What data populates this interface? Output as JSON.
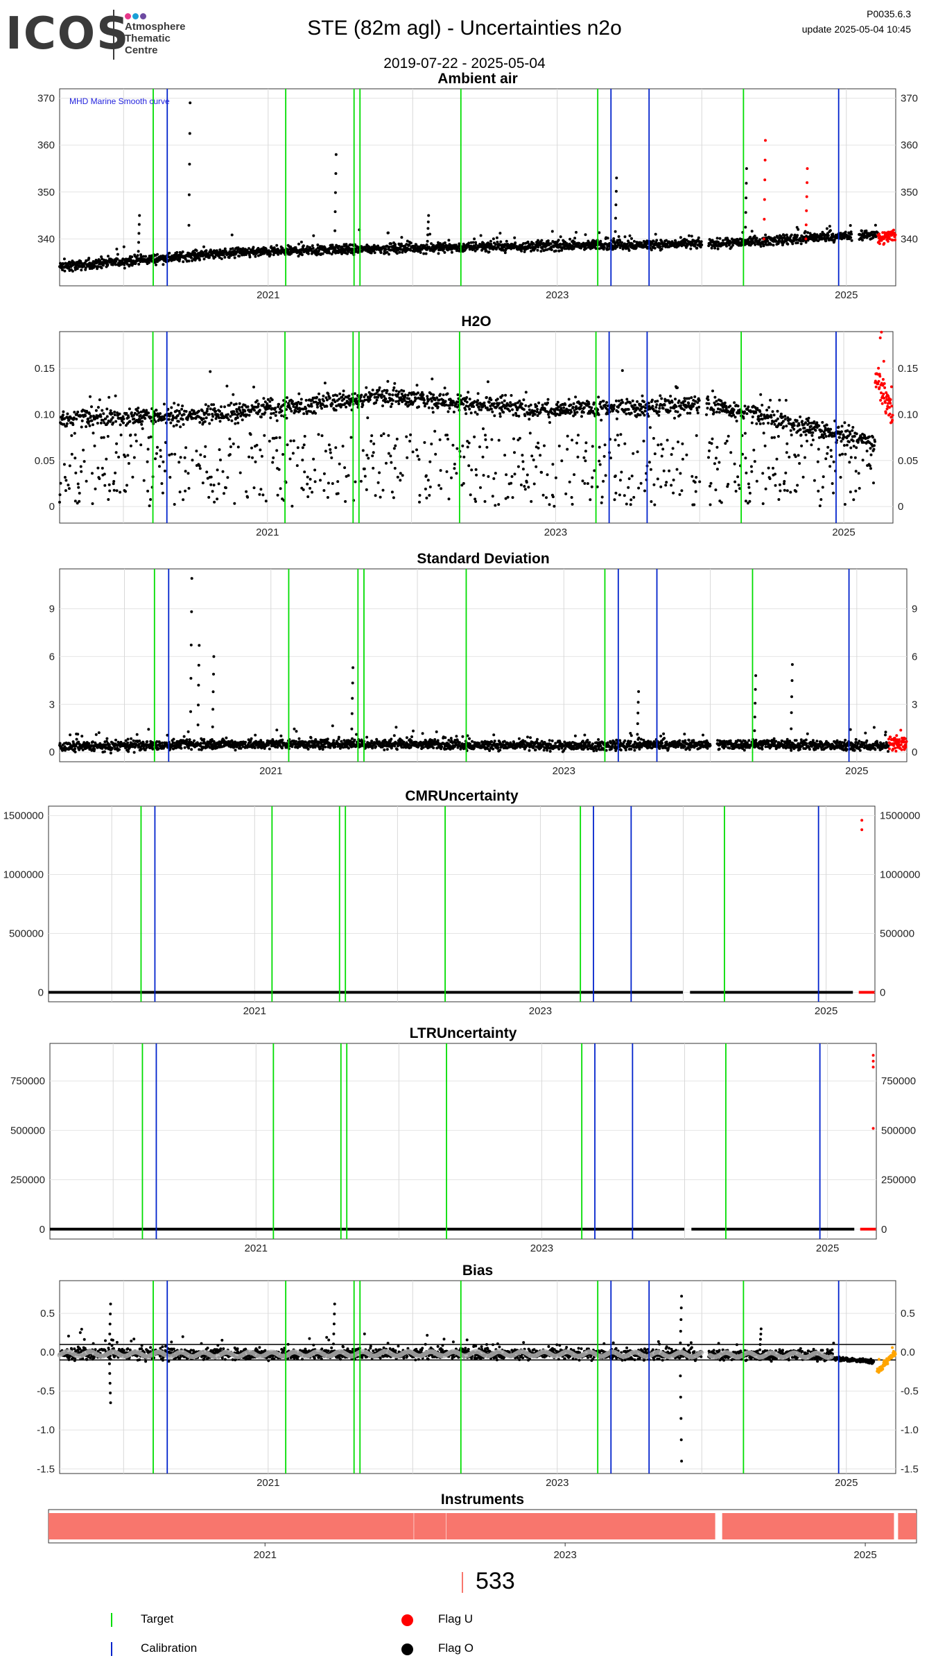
{
  "header": {
    "logo_text": "ICOS",
    "logo_sub": [
      "Atmosphere",
      "Thematic",
      "Centre"
    ],
    "logo_dot_colors": [
      "#e7388a",
      "#1a9fd6",
      "#6d4aa1"
    ],
    "title": "STE  (82m agl) - Uncertainties n2o",
    "version": "P0035.6.3",
    "update": "update  2025-05-04 10:45",
    "date_range": "2019-07-22 - 2025-05-04"
  },
  "colors": {
    "target": "#00dd00",
    "calibration": "#0022cc",
    "flag_u": "#ff0000",
    "flag_o": "#000000",
    "smooth": "#b0b0b0",
    "bias_recent": "#ffa500",
    "instrument": "#f8766d"
  },
  "chart_data": [
    {
      "type": "scatter",
      "title": "Ambient air",
      "annotation": "MHD Marine Smooth curve",
      "xlim": [
        "2019-07-22",
        "2025-05-04"
      ],
      "ylim": [
        330,
        372
      ],
      "yticks": [
        340,
        350,
        360,
        370
      ],
      "xticks": [
        "2021",
        "2023",
        "2025"
      ],
      "right_axis": true,
      "target_lines": [
        "2020-03-15",
        "2021-02-15",
        "2021-08-05",
        "2021-08-20",
        "2022-05-01",
        "2023-04-12",
        "2024-04-15"
      ],
      "calibration_lines": [
        "2020-04-20",
        "2023-05-15",
        "2023-08-20",
        "2024-12-12"
      ],
      "series": [
        {
          "kind": "band",
          "from": "2019-07-22",
          "to": "2025-03-20",
          "base": [
            334,
            337,
            338,
            338.5,
            339,
            341
          ],
          "spread": 3,
          "spikes": [
            [
              2020.45,
              369
            ],
            [
              2021.46,
              358
            ],
            [
              2023.4,
              353
            ],
            [
              2024.3,
              355
            ],
            [
              2020.1,
              345
            ],
            [
              2022.1,
              345
            ]
          ],
          "flag": "O"
        },
        {
          "kind": "band",
          "from": "2025-03-20",
          "to": "2025-05-04",
          "base": [
            340,
            341
          ],
          "spread": 4,
          "spikes": [
            [
              2024.43,
              361
            ],
            [
              2024.72,
              355
            ]
          ],
          "flag": "U"
        }
      ],
      "gaps": [
        [
          "2024-01-01",
          "2024-01-18"
        ],
        [
          "2025-01-15",
          "2025-02-02"
        ]
      ]
    },
    {
      "type": "scatter",
      "title": "H2O",
      "xlim": [
        "2019-07-22",
        "2025-05-04"
      ],
      "ylim": [
        -0.018,
        0.19
      ],
      "yticks": [
        0.0,
        0.05,
        0.1,
        0.15
      ],
      "xticks": [
        "2021",
        "2023",
        "2025"
      ],
      "right_axis": true,
      "target_lines": [
        "2020-03-15",
        "2021-02-15",
        "2021-08-05",
        "2021-08-20",
        "2022-05-01",
        "2023-04-12",
        "2024-04-15"
      ],
      "calibration_lines": [
        "2020-04-20",
        "2023-05-15",
        "2023-08-20",
        "2024-12-12"
      ],
      "series": [
        {
          "kind": "band",
          "from": "2019-07-22",
          "to": "2025-03-20",
          "base": [
            0.095,
            0.1,
            0.12,
            0.105,
            0.11,
            0.07
          ],
          "spread": 0.03,
          "low_scatter": [
            0.0,
            0.08
          ],
          "flag": "O"
        },
        {
          "kind": "band",
          "from": "2025-03-20",
          "to": "2025-05-04",
          "base": [
            0.14,
            0.1
          ],
          "spread": 0.04,
          "flag": "U"
        }
      ],
      "gaps": [
        [
          "2024-01-01",
          "2024-01-18"
        ]
      ]
    },
    {
      "type": "scatter",
      "title": "Standard Deviation",
      "xlim": [
        "2019-07-22",
        "2025-05-04"
      ],
      "ylim": [
        -0.6,
        11.5
      ],
      "yticks": [
        0,
        3,
        6,
        9
      ],
      "xticks": [
        "2021",
        "2023",
        "2025"
      ],
      "right_axis": true,
      "target_lines": [
        "2020-03-15",
        "2021-02-15",
        "2021-08-05",
        "2021-08-20",
        "2022-05-01",
        "2023-04-12",
        "2024-04-15"
      ],
      "calibration_lines": [
        "2020-04-20",
        "2023-05-15",
        "2023-08-20",
        "2024-12-12"
      ],
      "series": [
        {
          "kind": "band",
          "from": "2019-07-22",
          "to": "2025-03-20",
          "base": [
            0.3,
            0.5,
            0.5,
            0.4,
            0.5,
            0.4
          ],
          "spread": 0.9,
          "spikes": [
            [
              2020.45,
              10.9
            ],
            [
              2020.5,
              6.7
            ],
            [
              2020.6,
              6.0
            ],
            [
              2021.55,
              5.3
            ],
            [
              2024.3,
              4.8
            ],
            [
              2024.55,
              5.5
            ],
            [
              2023.5,
              3.8
            ]
          ],
          "flag": "O"
        },
        {
          "kind": "band",
          "from": "2025-03-20",
          "to": "2025-05-04",
          "base": [
            0.5,
            0.6
          ],
          "spread": 1.5,
          "flag": "U"
        }
      ],
      "gaps": [
        [
          "2024-01-01",
          "2024-01-18"
        ]
      ]
    },
    {
      "type": "scatter",
      "title": "CMRUncertainty",
      "xlim": [
        "2019-07-22",
        "2025-05-04"
      ],
      "ylim": [
        -80000,
        1580000
      ],
      "yticks": [
        0,
        500000,
        1000000,
        1500000
      ],
      "xticks": [
        "2021",
        "2023",
        "2025"
      ],
      "right_axis": true,
      "target_lines": [
        "2020-03-15",
        "2021-02-15",
        "2021-08-05",
        "2021-08-20",
        "2022-05-01",
        "2023-04-12",
        "2024-04-15"
      ],
      "calibration_lines": [
        "2020-04-20",
        "2023-05-15",
        "2023-08-20",
        "2024-12-12"
      ],
      "series": [
        {
          "kind": "flat",
          "from": "2019-07-22",
          "to": "2025-03-20",
          "value": 0,
          "flag": "O"
        },
        {
          "kind": "flat",
          "from": "2025-03-20",
          "to": "2025-05-04",
          "value": 0,
          "flag": "U",
          "extra": [
            [
              2025.25,
              1460000
            ],
            [
              2025.25,
              1380000
            ]
          ]
        }
      ],
      "gaps": [
        [
          "2024-01-01",
          "2024-01-18"
        ],
        [
          "2025-03-10",
          "2025-03-20"
        ]
      ]
    },
    {
      "type": "scatter",
      "title": "LTRUncertainty",
      "xlim": [
        "2019-07-22",
        "2025-05-04"
      ],
      "ylim": [
        -50000,
        940000
      ],
      "yticks": [
        0,
        250000,
        500000,
        750000
      ],
      "xticks": [
        "2021",
        "2023",
        "2025"
      ],
      "right_axis": true,
      "target_lines": [
        "2020-03-15",
        "2021-02-15",
        "2021-08-05",
        "2021-08-20",
        "2022-05-01",
        "2023-04-12",
        "2024-04-15"
      ],
      "calibration_lines": [
        "2020-04-20",
        "2023-05-15",
        "2023-08-20",
        "2024-12-12"
      ],
      "series": [
        {
          "kind": "flat",
          "from": "2019-07-22",
          "to": "2025-03-20",
          "value": 0,
          "flag": "O"
        },
        {
          "kind": "flat",
          "from": "2025-03-20",
          "to": "2025-05-04",
          "value": 0,
          "flag": "U",
          "extra": [
            [
              2025.32,
              880000
            ],
            [
              2025.32,
              850000
            ],
            [
              2025.32,
              820000
            ],
            [
              2025.32,
              510000
            ]
          ]
        }
      ],
      "gaps": [
        [
          "2024-01-01",
          "2024-01-18"
        ],
        [
          "2025-03-10",
          "2025-03-20"
        ]
      ]
    },
    {
      "type": "scatter",
      "title": "Bias",
      "xlim": [
        "2019-07-22",
        "2025-05-04"
      ],
      "ylim": [
        -1.56,
        0.92
      ],
      "yticks": [
        -1.5,
        -1.0,
        -0.5,
        0.0,
        0.5
      ],
      "ytick_labels": [
        "-1.5",
        "-1.0",
        "-0.5",
        "0.0",
        "0.5"
      ],
      "xticks": [
        "2021",
        "2023",
        "2025"
      ],
      "right_axis": true,
      "hlines": [
        0.1,
        -0.1
      ],
      "target_lines": [
        "2020-03-15",
        "2021-02-15",
        "2021-08-05",
        "2021-08-20",
        "2022-05-01",
        "2023-04-12",
        "2024-04-15"
      ],
      "calibration_lines": [
        "2020-04-20",
        "2023-05-15",
        "2023-08-20",
        "2024-12-12"
      ],
      "series": [
        {
          "kind": "band",
          "from": "2019-07-22",
          "to": "2024-12-01",
          "base": [
            -0.02,
            -0.03,
            -0.02,
            -0.02,
            -0.03,
            -0.04
          ],
          "spread": 0.2,
          "spikes": [
            [
              2019.9,
              0.62
            ],
            [
              2019.9,
              -0.65
            ],
            [
              2021.45,
              0.62
            ],
            [
              2023.85,
              0.72
            ],
            [
              2023.85,
              -1.4
            ],
            [
              2024.4,
              0.3
            ]
          ],
          "smooth": true,
          "flag": "O"
        },
        {
          "kind": "band",
          "from": "2024-12-01",
          "to": "2025-03-10",
          "base": [
            -0.08,
            -0.12
          ],
          "spread": 0.08,
          "flag": "O"
        },
        {
          "kind": "band",
          "from": "2025-03-18",
          "to": "2025-05-04",
          "base": [
            -0.25,
            0.0
          ],
          "spread": 0.12,
          "flag": "recent"
        }
      ],
      "gaps": [
        [
          "2024-01-01",
          "2024-01-18"
        ]
      ]
    },
    {
      "type": "bar",
      "title": "Instruments",
      "xlim": [
        "2019-07-22",
        "2025-05-04"
      ],
      "xticks": [
        "2021",
        "2023",
        "2025"
      ],
      "segments": [
        [
          "2019-07-22",
          "2021-12-28"
        ],
        [
          "2021-12-29",
          "2022-03-15"
        ],
        [
          "2022-03-16",
          "2024-01-01"
        ],
        [
          "2024-01-18",
          "2025-03-10"
        ],
        [
          "2025-03-20",
          "2025-05-04"
        ]
      ],
      "count": "533"
    }
  ],
  "legend": {
    "target": "Target",
    "calibration": "Calibration",
    "flag_u": "Flag U",
    "flag_o": "Flag O"
  }
}
